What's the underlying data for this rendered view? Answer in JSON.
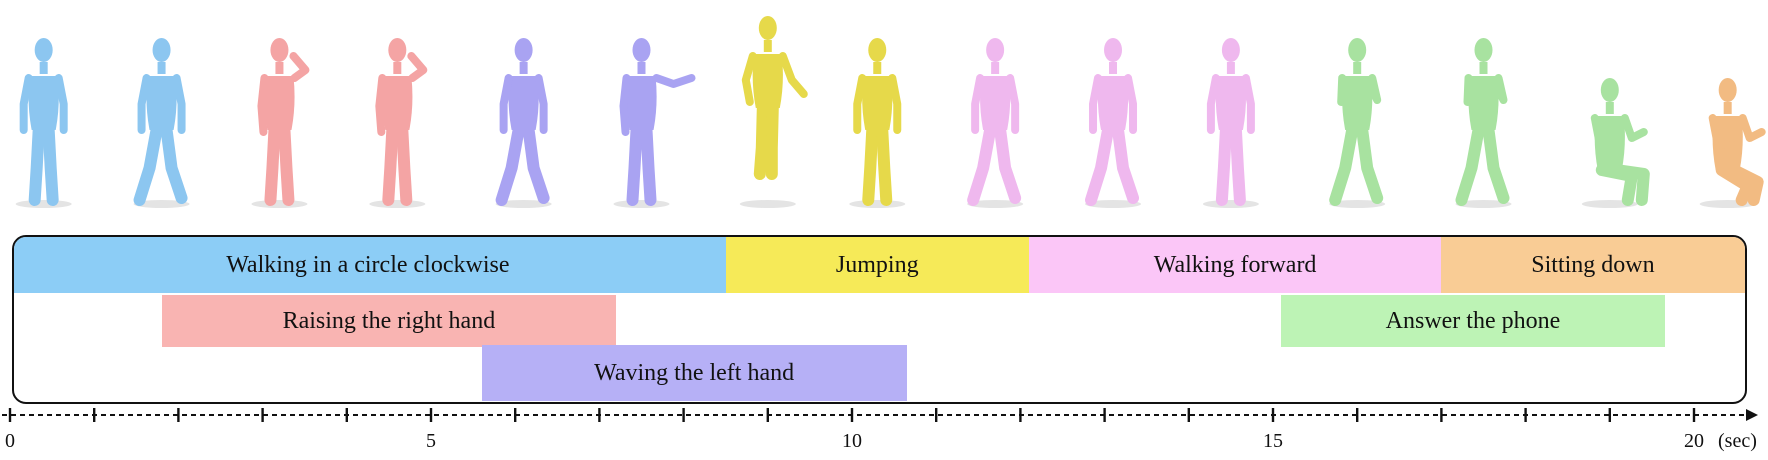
{
  "activities": [
    {
      "label": "Walking in a circle clockwise",
      "start": 0.0,
      "end": 8.5,
      "row": 0,
      "color": "#8ccdf6"
    },
    {
      "label": "Jumping",
      "start": 8.5,
      "end": 12.1,
      "row": 0,
      "color": "#f6ea58"
    },
    {
      "label": "Walking forward",
      "start": 12.1,
      "end": 17.0,
      "row": 0,
      "color": "#fbc6f7"
    },
    {
      "label": "Sitting down",
      "start": 17.0,
      "end": 20.6,
      "row": 0,
      "color": "#f9cc95"
    },
    {
      "label": "Raising the right hand",
      "start": 1.8,
      "end": 7.2,
      "row": 1,
      "color": "#f9b4b2"
    },
    {
      "label": "Answer the phone",
      "start": 15.1,
      "end": 19.65,
      "row": 1,
      "color": "#bdf3b5"
    },
    {
      "label": "Waving the left hand",
      "start": 5.6,
      "end": 10.65,
      "row": 2,
      "color": "#b6b0f6"
    }
  ],
  "figures": [
    {
      "time": 0.4,
      "color": "#8cc6f0",
      "pose": "stand"
    },
    {
      "time": 1.8,
      "color": "#8cc6f0",
      "pose": "walk"
    },
    {
      "time": 3.2,
      "color": "#f4a4a4",
      "pose": "raise"
    },
    {
      "time": 4.6,
      "color": "#f4a4a4",
      "pose": "raise"
    },
    {
      "time": 6.1,
      "color": "#a9a3f2",
      "pose": "walk"
    },
    {
      "time": 7.5,
      "color": "#a9a3f2",
      "pose": "wave"
    },
    {
      "time": 9.0,
      "color": "#e6d94a",
      "pose": "jump"
    },
    {
      "time": 10.3,
      "color": "#e6d94a",
      "pose": "stand"
    },
    {
      "time": 11.7,
      "color": "#efb8ee",
      "pose": "walk"
    },
    {
      "time": 13.1,
      "color": "#efb8ee",
      "pose": "walk"
    },
    {
      "time": 14.5,
      "color": "#efb8ee",
      "pose": "stand"
    },
    {
      "time": 16.0,
      "color": "#a8e2a0",
      "pose": "phone"
    },
    {
      "time": 17.5,
      "color": "#a8e2a0",
      "pose": "phone"
    },
    {
      "time": 19.0,
      "color": "#a8e2a0",
      "pose": "squat"
    },
    {
      "time": 20.4,
      "color": "#f2bb82",
      "pose": "sit"
    }
  ],
  "axis": {
    "min": 0,
    "max": 20.6,
    "major_ticks": [
      0,
      5,
      10,
      15
    ],
    "last_tick": "20",
    "unit": "(sec)"
  }
}
